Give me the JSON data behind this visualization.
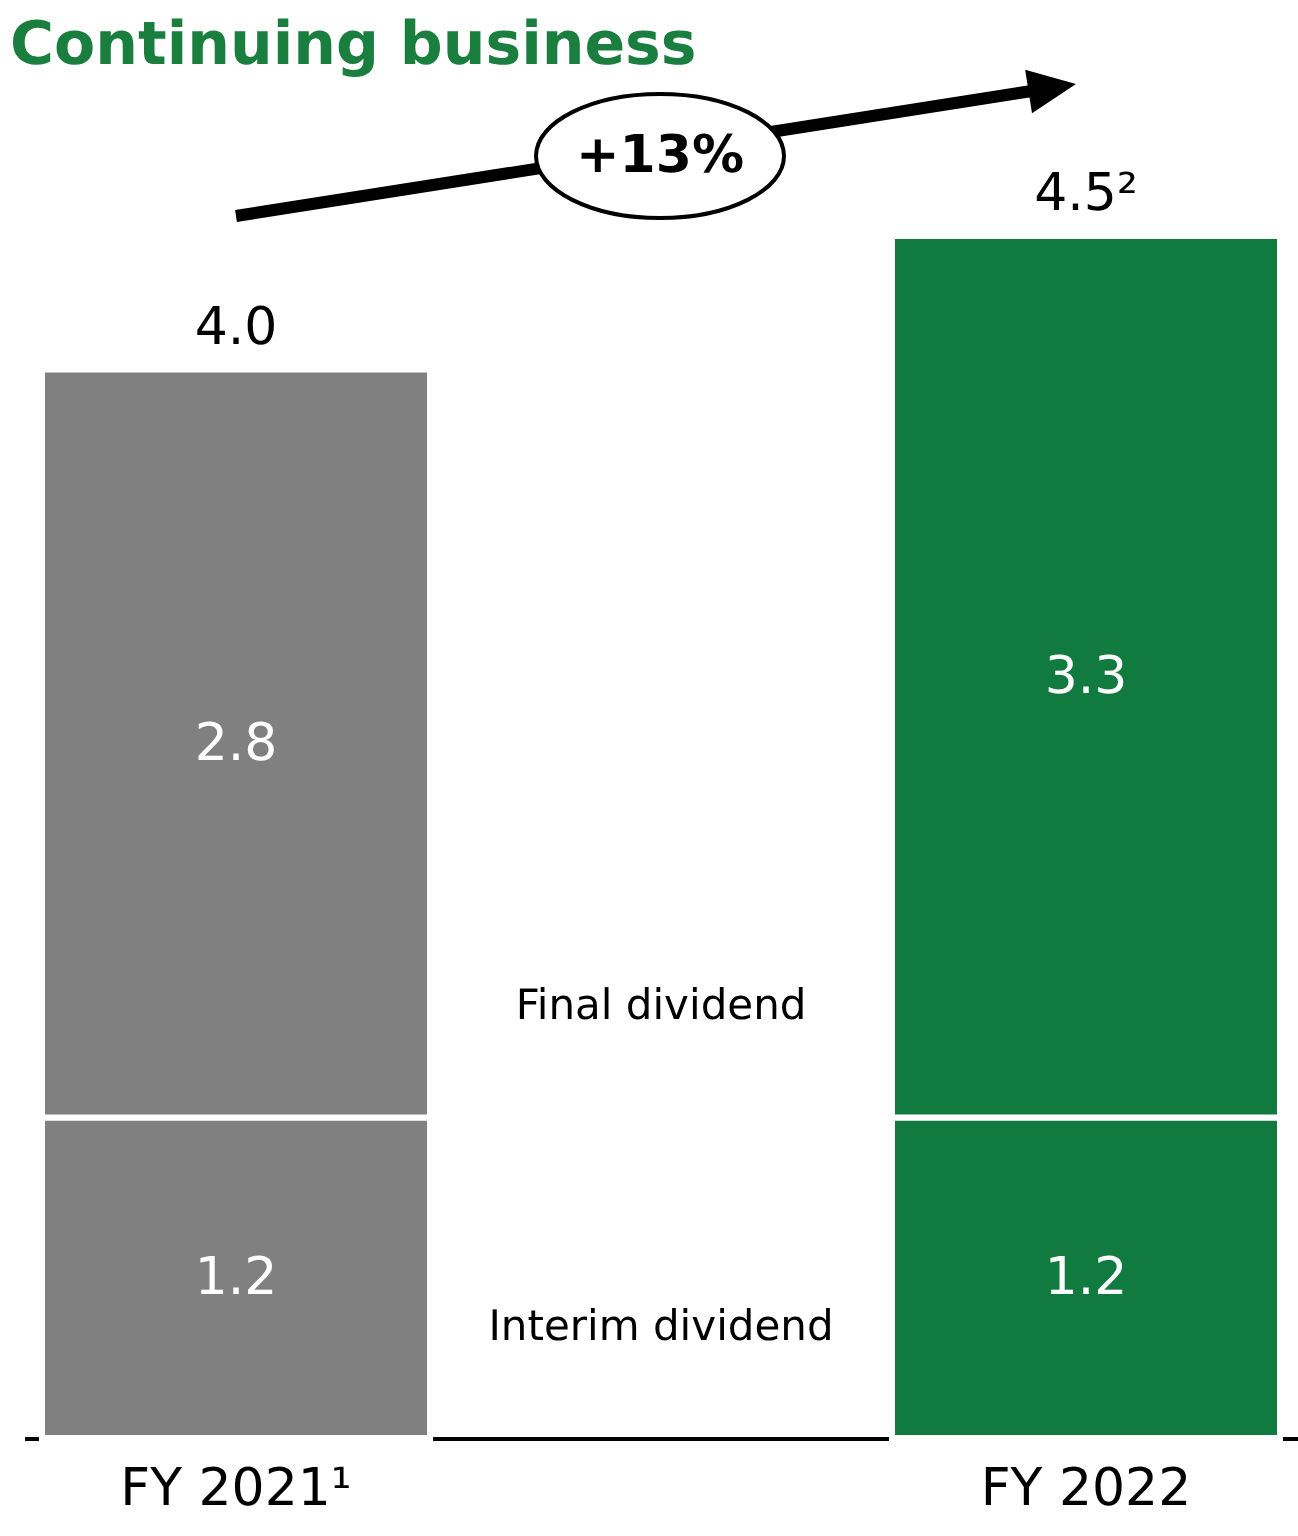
{
  "chart_data": {
    "type": "bar",
    "title": "Continuing business",
    "categories": [
      "FY 2021¹",
      "FY 2022"
    ],
    "stacked": true,
    "series": [
      {
        "name": "Interim dividend",
        "colors": [
          "#808080",
          "#117a3e"
        ],
        "values": [
          1.2,
          1.2
        ]
      },
      {
        "name": "Final dividend",
        "colors": [
          "#808080",
          "#117a3e"
        ],
        "values": [
          2.8,
          3.3
        ]
      }
    ],
    "data_labels": true,
    "totals": [
      "4.0",
      "4.5²"
    ],
    "annotations": [
      "+13%"
    ],
    "tick_labels": "x"
  }
}
